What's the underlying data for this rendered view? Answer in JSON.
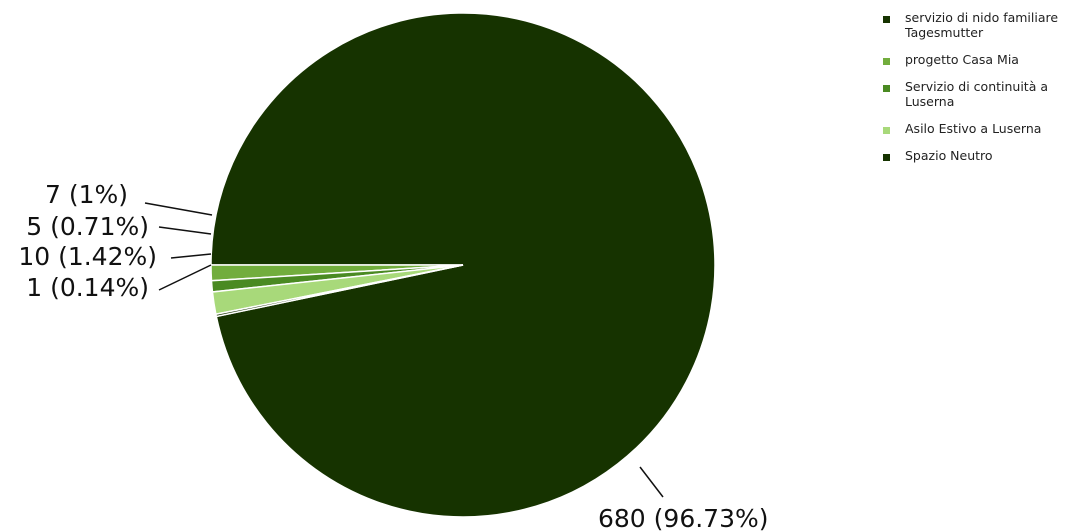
{
  "chart_data": {
    "type": "pie",
    "slices": [
      {
        "label": "servizio di nido familiare Tagesmutter",
        "value": 680,
        "display": "680 (96.73%)",
        "color": "#163300"
      },
      {
        "label": "progetto Casa Mia",
        "value": 7,
        "display": "7 (1%)",
        "color": "#72ad3d"
      },
      {
        "label": "Servizio di continuità a Luserna",
        "value": 5,
        "display": "5 (0.71%)",
        "color": "#4a8a22"
      },
      {
        "label": "Asilo Estivo a Luserna",
        "value": 10,
        "display": "10 (1.42%)",
        "color": "#a8d97a"
      },
      {
        "label": "Spazio Neutro",
        "value": 1,
        "display": "1 (0.14%)",
        "color": "#163300"
      }
    ],
    "legend": [
      {
        "text": "servizio di nido familiare Tagesmutter",
        "color": "#163300"
      },
      {
        "text": "progetto Casa Mia",
        "color": "#72ad3d"
      },
      {
        "text": "Servizio di continuità a Luserna",
        "color": "#4a8a22"
      },
      {
        "text": "Asilo Estivo a Luserna",
        "color": "#a8d97a"
      },
      {
        "text": "Spazio Neutro",
        "color": "#163300"
      }
    ],
    "legend_position": "top-right"
  }
}
